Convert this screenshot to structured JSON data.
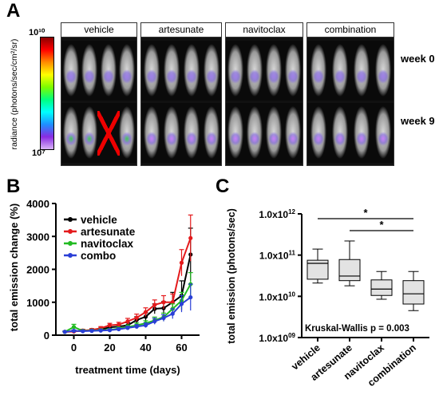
{
  "panel_labels": {
    "a": "A",
    "b": "B",
    "c": "C"
  },
  "panelA": {
    "colorbar": {
      "title": "radiance (photons/sec/cm²/sr)",
      "top": "10¹⁰",
      "bottom": "10⁷"
    },
    "groups": [
      "vehicle",
      "artesunate",
      "navitoclax",
      "combination"
    ],
    "rows": [
      "week 0",
      "week 9"
    ]
  },
  "chart_data": [
    {
      "type": "line",
      "ylabel": "total emission change (%)",
      "xlabel": "treatment time (days)",
      "xlim": [
        -10,
        70
      ],
      "ylim": [
        0,
        4000
      ],
      "xticks": [
        0,
        20,
        40,
        60
      ],
      "yticks": [
        0,
        1000,
        2000,
        3000,
        4000
      ],
      "legend_position": "top-left",
      "series": [
        {
          "name": "vehicle",
          "color": "#000000",
          "x": [
            -5,
            0,
            5,
            10,
            15,
            20,
            25,
            30,
            35,
            40,
            45,
            50,
            55,
            60,
            65
          ],
          "y": [
            100,
            120,
            130,
            150,
            170,
            240,
            260,
            300,
            460,
            560,
            800,
            820,
            1000,
            1200,
            2450
          ],
          "err": [
            20,
            30,
            40,
            40,
            50,
            60,
            60,
            80,
            100,
            120,
            150,
            200,
            300,
            450,
            800
          ]
        },
        {
          "name": "artesunate",
          "color": "#e41a1c",
          "x": [
            -5,
            0,
            5,
            10,
            15,
            20,
            25,
            30,
            35,
            40,
            45,
            50,
            55,
            60,
            65
          ],
          "y": [
            100,
            110,
            140,
            160,
            210,
            300,
            320,
            420,
            530,
            700,
            920,
            1000,
            1000,
            2200,
            2950
          ],
          "err": [
            20,
            30,
            40,
            40,
            50,
            60,
            70,
            90,
            110,
            130,
            150,
            200,
            250,
            400,
            700
          ]
        },
        {
          "name": "navitoclax",
          "color": "#22bb22",
          "x": [
            -5,
            0,
            5,
            10,
            15,
            20,
            25,
            30,
            35,
            40,
            45,
            50,
            55,
            60,
            65
          ],
          "y": [
            100,
            250,
            130,
            140,
            150,
            160,
            200,
            250,
            300,
            360,
            450,
            550,
            800,
            1050,
            1550
          ],
          "err": [
            20,
            80,
            30,
            30,
            40,
            40,
            50,
            60,
            70,
            80,
            100,
            120,
            150,
            250,
            350
          ]
        },
        {
          "name": "combo",
          "color": "#2a3fd6",
          "x": [
            -5,
            0,
            5,
            10,
            15,
            20,
            25,
            30,
            35,
            40,
            45,
            50,
            55,
            60,
            65
          ],
          "y": [
            100,
            130,
            120,
            130,
            140,
            150,
            180,
            220,
            260,
            300,
            420,
            520,
            650,
            950,
            1150
          ],
          "err": [
            20,
            30,
            30,
            30,
            30,
            40,
            40,
            50,
            60,
            70,
            90,
            100,
            150,
            250,
            400
          ]
        }
      ]
    },
    {
      "type": "box",
      "ylabel": "total emission (photons/sec)",
      "yscale": "log",
      "ylim": [
        1000000000.0,
        1000000000000.0
      ],
      "yticks": [
        1000000000.0,
        10000000000.0,
        100000000000.0,
        1000000000000.0
      ],
      "ytick_labels": [
        {
          "base": "1.0x10",
          "exp": "09"
        },
        {
          "base": "1.0x10",
          "exp": "10"
        },
        {
          "base": "1.0x10",
          "exp": "11"
        },
        {
          "base": "1.0x10",
          "exp": "12"
        }
      ],
      "categories": [
        "vehicle",
        "artesunate",
        "navitoclax",
        "combination"
      ],
      "boxes": [
        {
          "min": 21000000000.0,
          "q1": 26000000000.0,
          "median": 63000000000.0,
          "q3": 75000000000.0,
          "max": 140000000000.0
        },
        {
          "min": 18000000000.0,
          "q1": 24000000000.0,
          "median": 31000000000.0,
          "q3": 78000000000.0,
          "max": 220000000000.0
        },
        {
          "min": 8500000000.0,
          "q1": 10500000000.0,
          "median": 15000000000.0,
          "q3": 25000000000.0,
          "max": 40000000000.0
        },
        {
          "min": 4500000000.0,
          "q1": 6500000000.0,
          "median": 11500000000.0,
          "q3": 24000000000.0,
          "max": 40000000000.0
        }
      ],
      "annotations": {
        "test": "Kruskal-Wallis p = 0.003",
        "brackets": [
          {
            "from": "vehicle",
            "to": "combination",
            "label": "*"
          },
          {
            "from": "artesunate",
            "to": "combination",
            "label": "*"
          }
        ]
      }
    }
  ]
}
